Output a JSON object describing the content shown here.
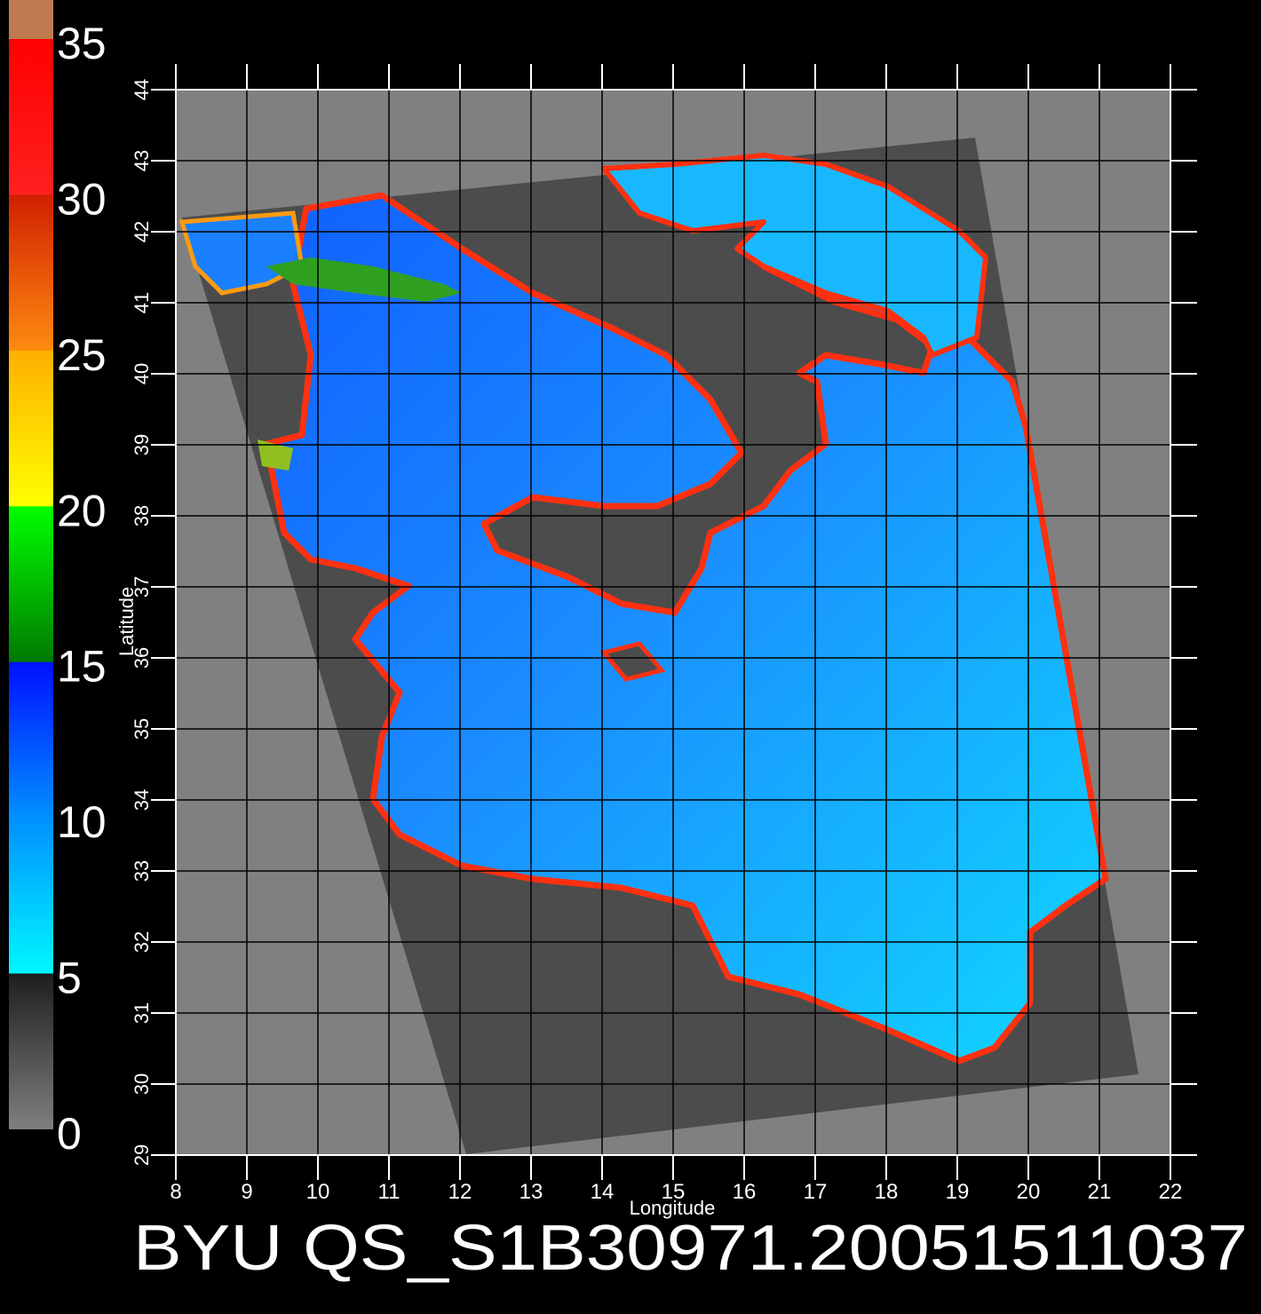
{
  "map": {
    "title": "BYU QS_S1B30971.20051511037",
    "x_label": "Longitude",
    "y_label": "Latitude",
    "lonlim": [
      8,
      22
    ],
    "latlim": [
      29,
      44
    ],
    "lon_ticks": [
      8,
      9,
      10,
      11,
      12,
      13,
      14,
      15,
      16,
      17,
      18,
      19,
      20,
      21,
      22
    ],
    "lat_ticks": [
      29,
      30,
      31,
      32,
      33,
      34,
      35,
      36,
      37,
      38,
      39,
      40,
      41,
      42,
      43,
      44
    ],
    "grid": true,
    "colorbar": {
      "lim": [
        0,
        35
      ],
      "ticks": [
        0,
        5,
        10,
        15,
        20,
        25,
        30,
        35
      ]
    }
  }
}
